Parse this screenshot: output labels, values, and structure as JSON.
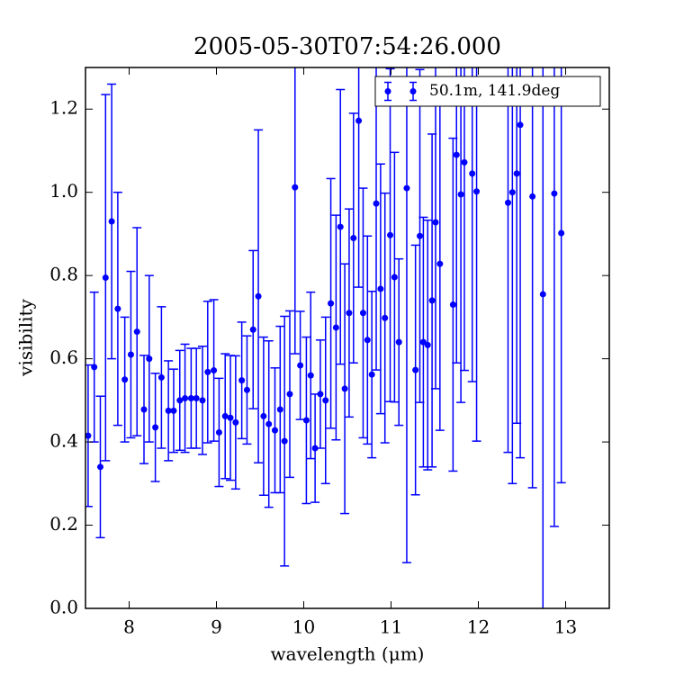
{
  "chart_data": {
    "type": "errorbar",
    "title": "2005-05-30T07:54:26.000",
    "x_label": "wavelength (μm)",
    "y_label": "visibility",
    "xlim": [
      7.5,
      13.5
    ],
    "ylim": [
      0,
      1.3
    ],
    "xticks": [
      8,
      9,
      10,
      11,
      12,
      13
    ],
    "yticks": [
      {
        "value": 0,
        "label": "0.0"
      },
      0.2,
      0.4,
      0.6,
      0.8,
      {
        "value": 1,
        "label": "1.0"
      },
      1.2
    ],
    "legend_loc": "upper right",
    "series": [
      {
        "name": "50.1m, 141.9deg",
        "color": "#0000ff",
        "x": [
          7.53,
          7.6,
          7.67,
          7.73,
          7.8,
          7.87,
          7.95,
          8.02,
          8.09,
          8.17,
          8.23,
          8.3,
          8.37,
          8.45,
          8.51,
          8.58,
          8.64,
          8.71,
          8.77,
          8.84,
          8.9,
          8.97,
          9.03,
          9.1,
          9.16,
          9.22,
          9.29,
          9.35,
          9.42,
          9.48,
          9.54,
          9.6,
          9.67,
          9.73,
          9.78,
          9.84,
          9.9,
          9.96,
          10.03,
          10.08,
          10.13,
          10.19,
          10.25,
          10.31,
          10.37,
          10.42,
          10.47,
          10.52,
          10.57,
          10.63,
          10.68,
          10.73,
          10.78,
          10.83,
          10.88,
          10.93,
          10.99,
          11.04,
          11.09,
          11.18,
          11.28,
          11.33,
          11.37,
          11.42,
          11.47,
          11.51,
          11.56,
          11.71,
          11.75,
          11.8,
          11.84,
          11.93,
          11.98,
          12.34,
          12.39,
          12.44,
          12.48,
          12.62,
          12.74,
          12.87,
          12.95
        ],
        "values": [
          0.415,
          0.58,
          0.34,
          0.795,
          0.93,
          0.72,
          0.55,
          0.61,
          0.665,
          0.478,
          0.6,
          0.435,
          0.555,
          0.475,
          0.475,
          0.5,
          0.505,
          0.505,
          0.505,
          0.5,
          0.568,
          0.572,
          0.423,
          0.462,
          0.458,
          0.447,
          0.548,
          0.525,
          0.67,
          0.75,
          0.462,
          0.443,
          0.428,
          0.478,
          0.402,
          0.515,
          1.012,
          0.584,
          0.452,
          0.56,
          0.385,
          0.515,
          0.5,
          0.733,
          0.675,
          0.917,
          0.528,
          0.71,
          0.89,
          1.172,
          0.71,
          0.645,
          0.562,
          0.973,
          0.768,
          0.698,
          0.897,
          0.796,
          0.64,
          1.01,
          0.573,
          0.895,
          0.64,
          0.633,
          0.74,
          0.928,
          0.828,
          0.73,
          1.09,
          0.995,
          1.072,
          1.045,
          1.002,
          0.975,
          1.0,
          1.045,
          1.162,
          0.99,
          0.755,
          0.997,
          0.902
        ],
        "errors": [
          0.17,
          0.18,
          0.17,
          0.44,
          0.33,
          0.28,
          0.15,
          0.2,
          0.25,
          0.13,
          0.2,
          0.13,
          0.17,
          0.12,
          0.1,
          0.12,
          0.13,
          0.12,
          0.12,
          0.13,
          0.17,
          0.17,
          0.13,
          0.15,
          0.15,
          0.16,
          0.14,
          0.13,
          0.19,
          0.4,
          0.19,
          0.2,
          0.15,
          0.2,
          0.3,
          0.2,
          0.4,
          0.13,
          0.2,
          0.2,
          0.13,
          0.13,
          0.2,
          0.3,
          0.27,
          0.33,
          0.3,
          0.25,
          0.3,
          0.4,
          0.3,
          0.25,
          0.2,
          0.4,
          0.3,
          0.3,
          0.4,
          0.3,
          0.2,
          0.9,
          0.3,
          0.4,
          0.3,
          0.3,
          0.4,
          0.4,
          0.4,
          0.4,
          0.5,
          0.5,
          0.5,
          0.5,
          0.6,
          0.6,
          0.7,
          0.6,
          0.8,
          0.7,
          0.8,
          0.8,
          0.6
        ]
      }
    ]
  }
}
